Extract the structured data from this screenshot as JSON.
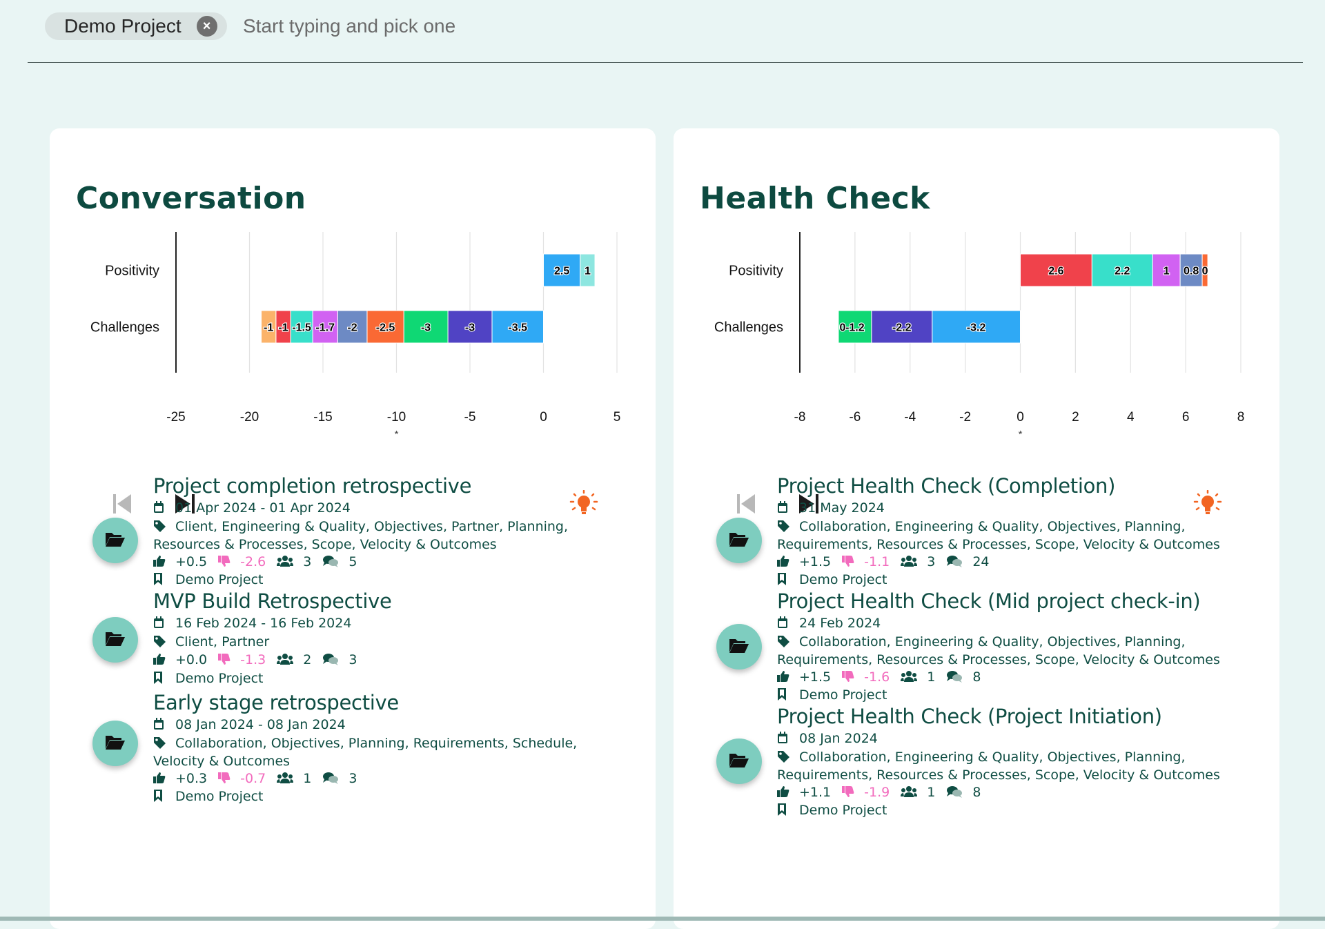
{
  "filter": {
    "chip_label": "Demo Project",
    "placeholder": "Start typing and pick one"
  },
  "colors": {
    "background": "#e9f5f4",
    "title": "#0d4a40",
    "folder_button": "#7ecdbf",
    "negative_score": "#f26bbd",
    "hint_icon": "#f26522"
  },
  "panels": [
    {
      "title": "Conversation",
      "chart_data": {
        "type": "bar",
        "orientation": "horizontal-stacked",
        "categories": [
          "Positivity",
          "Challenges"
        ],
        "xlim": [
          -25,
          5
        ],
        "xticks": [
          "-25",
          "-20",
          "-15",
          "-10",
          "-5",
          "0",
          "5"
        ],
        "marker": "*",
        "marker_x": -10,
        "grid": true,
        "segments": {
          "Positivity": [
            {
              "value": 2.5,
              "label": "2.5",
              "color": "#2fa9f5"
            },
            {
              "value": 1,
              "label": "1",
              "color": "#8de6e0"
            }
          ],
          "Challenges": [
            {
              "value": -3.5,
              "label": "-3.5",
              "color": "#2fa9f5"
            },
            {
              "value": -3,
              "label": "-3",
              "color": "#5043c4"
            },
            {
              "value": -3,
              "label": "-3",
              "color": "#0fd874"
            },
            {
              "value": -2.5,
              "label": "-2.5",
              "color": "#fa6934"
            },
            {
              "value": -2,
              "label": "-2",
              "color": "#6d8ac4"
            },
            {
              "value": -1.7,
              "label": "-1.7",
              "color": "#d162f2"
            },
            {
              "value": -1.5,
              "label": "-1.5",
              "color": "#38dfca"
            },
            {
              "value": -1,
              "label": "-1",
              "color": "#f0424b"
            },
            {
              "value": -1,
              "label": "-1",
              "color": "#fbb36a"
            }
          ]
        }
      },
      "items": [
        {
          "title": "Project completion retrospective",
          "dates": "01 Apr 2024 - 01 Apr 2024",
          "tags": "Client, Engineering & Quality, Objectives, Partner, Planning, Resources & Processes, Scope, Velocity & Outcomes",
          "positive": "+0.5",
          "negative": "-2.6",
          "participants": "3",
          "comments": "5",
          "project": "Demo Project"
        },
        {
          "title": "MVP Build Retrospective",
          "dates": "16 Feb 2024 - 16 Feb 2024",
          "tags": "Client, Partner",
          "positive": "+0.0",
          "negative": "-1.3",
          "participants": "2",
          "comments": "3",
          "project": "Demo Project"
        },
        {
          "title": "Early stage retrospective",
          "dates": "08 Jan 2024 - 08 Jan 2024",
          "tags": "Collaboration, Objectives, Planning, Requirements, Schedule, Velocity & Outcomes",
          "positive": "+0.3",
          "negative": "-0.7",
          "participants": "1",
          "comments": "3",
          "project": "Demo Project"
        }
      ]
    },
    {
      "title": "Health Check",
      "chart_data": {
        "type": "bar",
        "orientation": "horizontal-stacked",
        "categories": [
          "Positivity",
          "Challenges"
        ],
        "xlim": [
          -8,
          8
        ],
        "xticks": [
          "-8",
          "-6",
          "-4",
          "-2",
          "0",
          "2",
          "4",
          "6",
          "8"
        ],
        "marker": "*",
        "marker_x": 0,
        "grid": true,
        "segments": {
          "Positivity": [
            {
              "value": 2.6,
              "label": "2.6",
              "color": "#f0424b"
            },
            {
              "value": 2.2,
              "label": "2.2",
              "color": "#38dfca"
            },
            {
              "value": 1,
              "label": "1",
              "color": "#d162f2"
            },
            {
              "value": 0.8,
              "label": "0.8",
              "color": "#6d8ac4"
            },
            {
              "value": 0.2,
              "label": "0",
              "color": "#fa6934"
            }
          ],
          "Challenges": [
            {
              "value": -3.2,
              "label": "-3.2",
              "color": "#2fa9f5"
            },
            {
              "value": -2.2,
              "label": "-2.2",
              "color": "#5043c4"
            },
            {
              "value": -1.2,
              "label": "-1.2",
              "color": "#0fd874"
            },
            {
              "value": 0,
              "label": "0",
              "color": "#fa6934"
            }
          ]
        }
      },
      "items": [
        {
          "title": "Project Health Check (Completion)",
          "dates": "31 May 2024",
          "tags": "Collaboration, Engineering & Quality, Objectives, Planning, Requirements, Resources & Processes, Scope, Velocity & Outcomes",
          "positive": "+1.5",
          "negative": "-1.1",
          "participants": "3",
          "comments": "24",
          "project": "Demo Project"
        },
        {
          "title": "Project Health Check (Mid project check-in)",
          "dates": "24 Feb 2024",
          "tags": "Collaboration, Engineering & Quality, Objectives, Planning, Requirements, Resources & Processes, Scope, Velocity & Outcomes",
          "positive": "+1.5",
          "negative": "-1.6",
          "participants": "1",
          "comments": "8",
          "project": "Demo Project"
        },
        {
          "title": "Project Health Check (Project Initiation)",
          "dates": "08 Jan 2024",
          "tags": "Collaboration, Engineering & Quality, Objectives, Planning, Requirements, Resources & Processes, Scope, Velocity & Outcomes",
          "positive": "+1.1",
          "negative": "-1.9",
          "participants": "1",
          "comments": "8",
          "project": "Demo Project"
        }
      ]
    }
  ]
}
